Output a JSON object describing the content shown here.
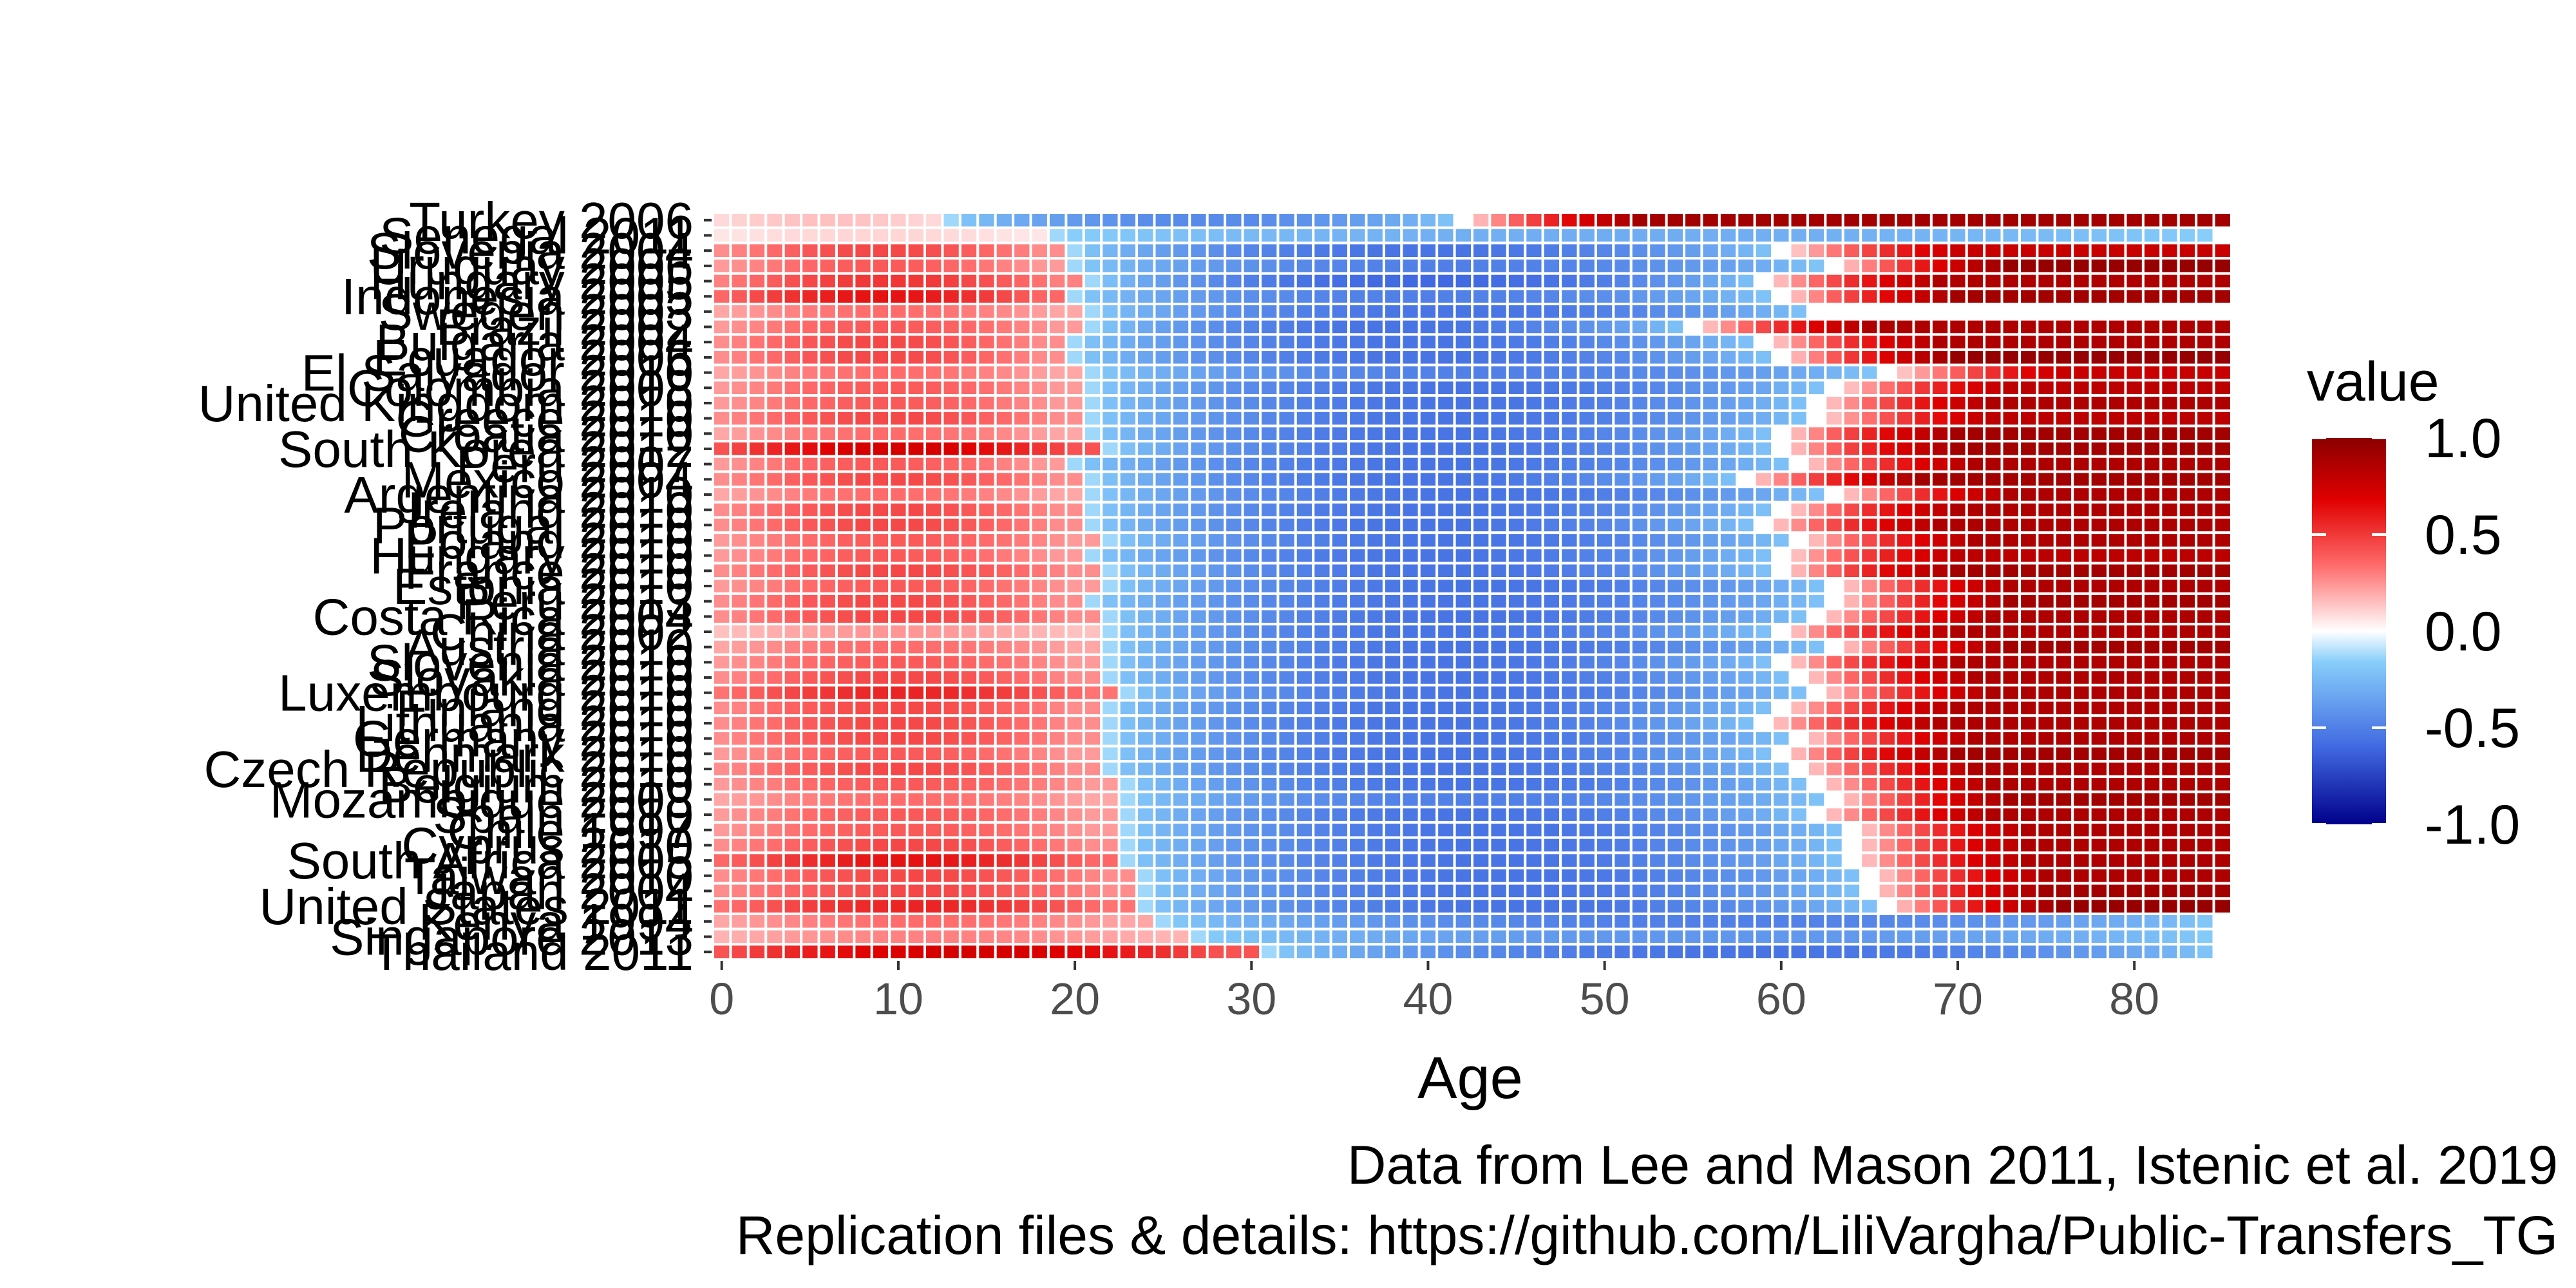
{
  "chart_data": {
    "type": "heatmap",
    "title": "",
    "xlabel": "Age",
    "ylabel": "",
    "xlim": [
      0,
      85
    ],
    "x_ticks": [
      0,
      10,
      20,
      30,
      40,
      50,
      60,
      70,
      80
    ],
    "grid": false,
    "legend": {
      "title": "value",
      "position": "right",
      "ticks": [
        "1.0",
        "0.5",
        "0.0",
        "-0.5",
        "-1.0"
      ],
      "range": [
        -1,
        1
      ],
      "colors": [
        "#00008b",
        "#4169e1",
        "#87cefa",
        "#ffffff",
        "#ff6b6b",
        "#e00000",
        "#8b0000"
      ]
    },
    "countries": [
      "Turkey 2006",
      "Senegal 2011",
      "Slovenia 2004",
      "Uruguay 2006",
      "Hungary 2005",
      "Indonesia 2005",
      "Sweden 2003",
      "Brazil 2002",
      "Bulgaria 2004",
      "Ecuador 2006",
      "El Salvador 2010",
      "Colombia 2008",
      "United Kingdom 2010",
      "Greece 2010",
      "Croatia 2010",
      "South Korea 2012",
      "Peru 2007",
      "Mexico 2004",
      "Argentina 2010",
      "Ireland 2010",
      "Portugal 2010",
      "Poland 2010",
      "Hungary 2010",
      "France 2010",
      "Estonia 2010",
      "Peru 2013",
      "Costa Rica 2004",
      "China 2002",
      "Austria 2010",
      "Slovenia 2010",
      "Slovakia 2010",
      "Luxembourg 2010",
      "Finland 2010",
      "Lithuania 2010",
      "Germany 2010",
      "Denmark 2010",
      "Czech Republic 2010",
      "Belgium 2010",
      "Mozambique 2008",
      "Spain 2010",
      "Chile 1997",
      "Cyprus 2010",
      "South Africa 2005",
      "Taiwan 2010",
      "Japan 2004",
      "United States 2011",
      "Kenya 1994",
      "Singapore 2013",
      "Thailand 2011"
    ],
    "x": "0 to 85 by 1",
    "values_note": "value at each age follows the row's shape; values in [-1, 1]",
    "row_profiles": [
      {
        "child_peak": 0.15,
        "work_start": 13,
        "work_end": 42,
        "work_min": -0.45,
        "old_peak": 0.9
      },
      {
        "child_peak": 0.1,
        "work_start": 19,
        "work_end": 85,
        "work_min": -0.3,
        "old_peak": 0.0
      },
      {
        "child_peak": 0.45,
        "work_start": 20,
        "work_end": 60,
        "work_min": -0.55,
        "old_peak": 0.75
      },
      {
        "child_peak": 0.4,
        "work_start": 20,
        "work_end": 63,
        "work_min": -0.5,
        "old_peak": 0.95
      },
      {
        "child_peak": 0.5,
        "work_start": 21,
        "work_end": 59,
        "work_min": -0.6,
        "old_peak": 0.85
      },
      {
        "child_peak": 0.6,
        "work_start": 20,
        "work_end": 60,
        "work_min": -0.5,
        "old_peak": 0.9
      },
      {
        "child_peak": 0.35,
        "work_start": 21,
        "work_end": 62,
        "work_min": -0.55,
        "old_peak": 0.0
      },
      {
        "child_peak": 0.4,
        "work_start": 21,
        "work_end": 55,
        "work_min": -0.55,
        "old_peak": 0.85
      },
      {
        "child_peak": 0.45,
        "work_start": 20,
        "work_end": 59,
        "work_min": -0.55,
        "old_peak": 0.85
      },
      {
        "child_peak": 0.45,
        "work_start": 20,
        "work_end": 60,
        "work_min": -0.55,
        "old_peak": 0.95
      },
      {
        "child_peak": 0.35,
        "work_start": 21,
        "work_end": 66,
        "work_min": -0.5,
        "old_peak": 0.75
      },
      {
        "child_peak": 0.4,
        "work_start": 21,
        "work_end": 63,
        "work_min": -0.55,
        "old_peak": 0.8
      },
      {
        "child_peak": 0.4,
        "work_start": 21,
        "work_end": 62,
        "work_min": -0.55,
        "old_peak": 0.85
      },
      {
        "child_peak": 0.45,
        "work_start": 21,
        "work_end": 62,
        "work_min": -0.55,
        "old_peak": 0.8
      },
      {
        "child_peak": 0.35,
        "work_start": 21,
        "work_end": 60,
        "work_min": -0.55,
        "old_peak": 0.9
      },
      {
        "child_peak": 0.7,
        "work_start": 22,
        "work_end": 60,
        "work_min": -0.55,
        "old_peak": 0.9
      },
      {
        "child_peak": 0.4,
        "work_start": 20,
        "work_end": 61,
        "work_min": -0.55,
        "old_peak": 0.85
      },
      {
        "child_peak": 0.45,
        "work_start": 21,
        "work_end": 58,
        "work_min": -0.55,
        "old_peak": 0.9
      },
      {
        "child_peak": 0.35,
        "work_start": 21,
        "work_end": 63,
        "work_min": -0.55,
        "old_peak": 0.85
      },
      {
        "child_peak": 0.45,
        "work_start": 21,
        "work_end": 60,
        "work_min": -0.55,
        "old_peak": 0.85
      },
      {
        "child_peak": 0.45,
        "work_start": 21,
        "work_end": 59,
        "work_min": -0.55,
        "old_peak": 0.85
      },
      {
        "child_peak": 0.4,
        "work_start": 22,
        "work_end": 61,
        "work_min": -0.55,
        "old_peak": 0.85
      },
      {
        "child_peak": 0.4,
        "work_start": 21,
        "work_end": 60,
        "work_min": -0.55,
        "old_peak": 0.8
      },
      {
        "child_peak": 0.45,
        "work_start": 22,
        "work_end": 60,
        "work_min": -0.55,
        "old_peak": 0.9
      },
      {
        "child_peak": 0.4,
        "work_start": 22,
        "work_end": 63,
        "work_min": -0.55,
        "old_peak": 0.85
      },
      {
        "child_peak": 0.45,
        "work_start": 21,
        "work_end": 63,
        "work_min": -0.55,
        "old_peak": 0.9
      },
      {
        "child_peak": 0.45,
        "work_start": 22,
        "work_end": 62,
        "work_min": -0.55,
        "old_peak": 0.85
      },
      {
        "child_peak": 0.25,
        "work_start": 22,
        "work_end": 60,
        "work_min": -0.55,
        "old_peak": 0.85
      },
      {
        "child_peak": 0.35,
        "work_start": 22,
        "work_end": 63,
        "work_min": -0.55,
        "old_peak": 0.9
      },
      {
        "child_peak": 0.4,
        "work_start": 22,
        "work_end": 60,
        "work_min": -0.55,
        "old_peak": 0.85
      },
      {
        "child_peak": 0.45,
        "work_start": 22,
        "work_end": 61,
        "work_min": -0.55,
        "old_peak": 0.85
      },
      {
        "child_peak": 0.55,
        "work_start": 23,
        "work_end": 62,
        "work_min": -0.55,
        "old_peak": 0.85
      },
      {
        "child_peak": 0.45,
        "work_start": 22,
        "work_end": 60,
        "work_min": -0.55,
        "old_peak": 0.85
      },
      {
        "child_peak": 0.45,
        "work_start": 22,
        "work_end": 59,
        "work_min": -0.55,
        "old_peak": 0.85
      },
      {
        "child_peak": 0.45,
        "work_start": 22,
        "work_end": 61,
        "work_min": -0.55,
        "old_peak": 0.85
      },
      {
        "child_peak": 0.4,
        "work_start": 22,
        "work_end": 60,
        "work_min": -0.55,
        "old_peak": 0.9
      },
      {
        "child_peak": 0.45,
        "work_start": 22,
        "work_end": 61,
        "work_min": -0.55,
        "old_peak": 0.85
      },
      {
        "child_peak": 0.4,
        "work_start": 23,
        "work_end": 62,
        "work_min": -0.55,
        "old_peak": 0.85
      },
      {
        "child_peak": 0.35,
        "work_start": 23,
        "work_end": 63,
        "work_min": -0.5,
        "old_peak": 0.9
      },
      {
        "child_peak": 0.4,
        "work_start": 23,
        "work_end": 62,
        "work_min": -0.55,
        "old_peak": 0.85
      },
      {
        "child_peak": 0.4,
        "work_start": 23,
        "work_end": 64,
        "work_min": -0.55,
        "old_peak": 0.85
      },
      {
        "child_peak": 0.45,
        "work_start": 23,
        "work_end": 64,
        "work_min": -0.55,
        "old_peak": 0.85
      },
      {
        "child_peak": 0.6,
        "work_start": 23,
        "work_end": 64,
        "work_min": -0.55,
        "old_peak": 0.85
      },
      {
        "child_peak": 0.45,
        "work_start": 24,
        "work_end": 65,
        "work_min": -0.55,
        "old_peak": 0.85
      },
      {
        "child_peak": 0.45,
        "work_start": 24,
        "work_end": 65,
        "work_min": -0.55,
        "old_peak": 0.9
      },
      {
        "child_peak": 0.55,
        "work_start": 24,
        "work_end": 66,
        "work_min": -0.55,
        "old_peak": 0.95
      },
      {
        "child_peak": 0.35,
        "work_start": 25,
        "work_end": 85,
        "work_min": -0.5,
        "old_peak": 0.0
      },
      {
        "child_peak": 0.3,
        "work_start": 27,
        "work_end": 85,
        "work_min": -0.4,
        "old_peak": 0.0
      },
      {
        "child_peak": 0.7,
        "work_start": 31,
        "work_end": 85,
        "work_min": -0.55,
        "old_peak": 0.0
      }
    ],
    "caption": [
      "Data from Lee and Mason 2011, Istenic et al. 2019",
      "Replication files & details: https://github.com/LiliVargha/Public-Transfers_TG"
    ]
  }
}
